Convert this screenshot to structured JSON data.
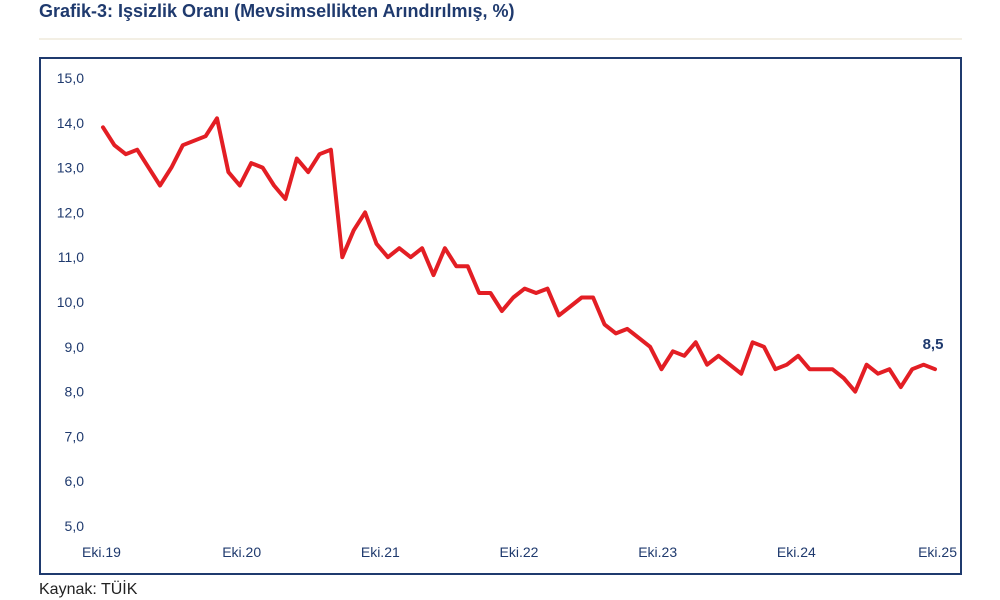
{
  "title": "Grafik-3: Işsizlik Oranı (Mevsimsellikten Arındırılmış, %)",
  "source": "Kaynak: TÜİK",
  "colors": {
    "line": "#e31e24",
    "text": "#1f3a6e",
    "frame": "#1f3a6e"
  },
  "chart_data": {
    "type": "line",
    "title": "Grafik-3: Işsizlik Oranı (Mevsimsellikten Arındırılmış, %)",
    "xlabel": "",
    "ylabel": "",
    "ylim": [
      5.0,
      15.0
    ],
    "yticks": [
      "5,0",
      "6,0",
      "7,0",
      "8,0",
      "9,0",
      "10,0",
      "11,0",
      "12,0",
      "13,0",
      "14,0",
      "15,0"
    ],
    "xtick_labels": [
      "Eki.19",
      "Eki.20",
      "Eki.21",
      "Eki.22",
      "Eki.23",
      "Eki.24",
      "Eki.25"
    ],
    "x_start": "2019-10",
    "x_end": "2025-10",
    "grid": false,
    "legend": "none",
    "series": [
      {
        "values": [
          13.9,
          13.5,
          13.3,
          13.4,
          13.0,
          12.6,
          13.0,
          13.5,
          13.6,
          13.7,
          14.1,
          12.9,
          12.6,
          13.1,
          13.0,
          12.6,
          12.3,
          13.2,
          12.9,
          13.3,
          13.4,
          11.0,
          11.6,
          12.0,
          11.3,
          11.0,
          11.2,
          11.0,
          11.2,
          10.6,
          11.2,
          10.8,
          10.8,
          10.2,
          10.2,
          9.8,
          10.1,
          10.3,
          10.2,
          10.3,
          9.7,
          9.9,
          10.1,
          10.1,
          9.5,
          9.3,
          9.4,
          9.2,
          9.0,
          8.5,
          8.9,
          8.8,
          9.1,
          8.6,
          8.8,
          8.6,
          8.4,
          9.1,
          9.0,
          8.5,
          8.6,
          8.8,
          8.5,
          8.5,
          8.5,
          8.3,
          8.0,
          8.6,
          8.4,
          8.5,
          8.1,
          8.5,
          8.6,
          8.5
        ]
      }
    ],
    "annotations": [
      {
        "label": "8,5",
        "value": 8.5,
        "at": "last"
      }
    ]
  }
}
